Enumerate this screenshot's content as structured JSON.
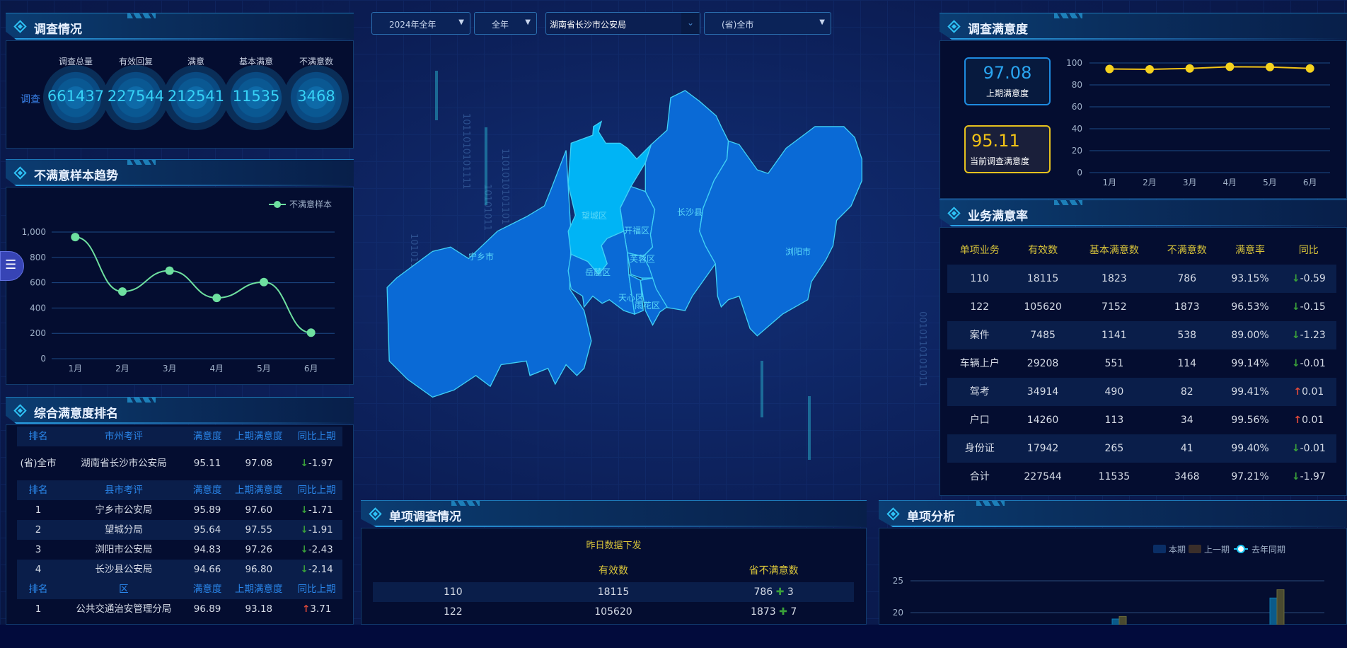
{
  "filters": {
    "year": "2024年全年",
    "period": "全年",
    "org": "湖南省长沙市公安局",
    "area": "(省)全市"
  },
  "survey": {
    "title": "调查情况",
    "row_label": "调查",
    "items": [
      {
        "label": "调查总量",
        "value": "661437"
      },
      {
        "label": "有效回复",
        "value": "227544"
      },
      {
        "label": "满意",
        "value": "212541"
      },
      {
        "label": "基本满意",
        "value": "11535"
      },
      {
        "label": "不满意数",
        "value": "3468"
      }
    ]
  },
  "trend": {
    "title": "不满意样本趋势"
  },
  "ranking": {
    "title": "综合满意度排名",
    "sections": [
      {
        "headers": [
          "排名",
          "市州考评",
          "满意度",
          "上期满意度",
          "同比上期"
        ],
        "rows": [
          [
            "(省)全市",
            "湖南省长沙市公安局",
            "95.11",
            "97.08",
            "-1.97",
            "down"
          ]
        ]
      },
      {
        "headers": [
          "排名",
          "县市考评",
          "满意度",
          "上期满意度",
          "同比上期"
        ],
        "rows": [
          [
            "1",
            "宁乡市公安局",
            "95.89",
            "97.60",
            "-1.71",
            "down"
          ],
          [
            "2",
            "望城分局",
            "95.64",
            "97.55",
            "-1.91",
            "down"
          ],
          [
            "3",
            "浏阳市公安局",
            "94.83",
            "97.26",
            "-2.43",
            "down"
          ],
          [
            "4",
            "长沙县公安局",
            "94.66",
            "96.80",
            "-2.14",
            "down"
          ]
        ]
      },
      {
        "headers": [
          "排名",
          "区",
          "满意度",
          "上期满意度",
          "同比上期"
        ],
        "rows": [
          [
            "1",
            "公共交通治安管理分局",
            "96.89",
            "93.18",
            "3.71",
            "up"
          ]
        ]
      }
    ]
  },
  "map": {
    "regions": [
      "宁乡市",
      "望城区",
      "开福区",
      "长沙县",
      "浏阳市",
      "岳麓区",
      "芙蓉区",
      "天心区",
      "雨花区"
    ],
    "highlighted": "望城区",
    "binary": [
      "1011010101111",
      "10101011",
      "1101010101101",
      "1010110101111",
      "0010110101011",
      "10101010111"
    ]
  },
  "satisfaction": {
    "title": "调查满意度",
    "prev": {
      "value": "97.08",
      "label": "上期满意度"
    },
    "current": {
      "value": "95.11",
      "label": "当前调查满意度"
    }
  },
  "business": {
    "title": "业务满意率",
    "headers": [
      "单项业务",
      "有效数",
      "基本满意数",
      "不满意数",
      "满意率",
      "同比"
    ],
    "rows": [
      [
        "110",
        "18115",
        "1823",
        "786",
        "93.15%",
        "-0.59",
        "down"
      ],
      [
        "122",
        "105620",
        "7152",
        "1873",
        "96.53%",
        "-0.15",
        "down"
      ],
      [
        "案件",
        "7485",
        "1141",
        "538",
        "89.00%",
        "-1.23",
        "down"
      ],
      [
        "车辆上户",
        "29208",
        "551",
        "114",
        "99.14%",
        "-0.01",
        "down"
      ],
      [
        "驾考",
        "34914",
        "490",
        "82",
        "99.41%",
        "0.01",
        "up"
      ],
      [
        "户口",
        "14260",
        "113",
        "34",
        "99.56%",
        "0.01",
        "up"
      ],
      [
        "身份证",
        "17942",
        "265",
        "41",
        "99.40%",
        "-0.01",
        "down"
      ],
      [
        "合计",
        "227544",
        "11535",
        "3468",
        "97.21%",
        "-1.97",
        "down"
      ]
    ]
  },
  "single": {
    "title": "单项调查情况",
    "group_header": "昨日数据下发",
    "headers": [
      "",
      "有效数",
      "省不满意数"
    ],
    "rows": [
      [
        "110",
        "18115",
        "786",
        "3"
      ],
      [
        "122",
        "105620",
        "1873",
        "7"
      ]
    ]
  },
  "analysis": {
    "title": "单项分析"
  },
  "colors": {
    "accent": "#2ec2f5",
    "green_line": "#6ee0a0",
    "yellow": "#f3c316",
    "down": "#3aa03a",
    "up": "#e04a3a",
    "map_fill": "#0a6ad6",
    "map_highlight": "#00b4f5"
  },
  "chart_data": [
    {
      "type": "line",
      "legend": [
        "不满意样本"
      ],
      "categories": [
        "1月",
        "2月",
        "3月",
        "4月",
        "5月",
        "6月"
      ],
      "series": [
        {
          "name": "不满意样本",
          "values": [
            960,
            530,
            695,
            480,
            605,
            205
          ]
        }
      ],
      "ylim": [
        0,
        1000
      ],
      "yticks": [
        "0",
        "200",
        "400",
        "600",
        "800",
        "1,000"
      ],
      "smooth": true,
      "grid": true,
      "legend_position": "top-right"
    },
    {
      "type": "line",
      "categories": [
        "1月",
        "2月",
        "3月",
        "4月",
        "5月",
        "6月"
      ],
      "series": [
        {
          "values": [
            94.5,
            94.2,
            95.0,
            96.5,
            96.3,
            95.0
          ]
        }
      ],
      "ylim": [
        0,
        100
      ],
      "yticks": [
        "0",
        "20",
        "40",
        "60",
        "80",
        "100"
      ],
      "grid": true
    },
    {
      "type": "bar",
      "legend": [
        "本期",
        "上一期",
        "去年同期"
      ],
      "yticks": [
        "20",
        "25"
      ],
      "series": [
        {
          "name": "本期",
          "values": [
            19,
            22.3
          ]
        },
        {
          "name": "上一期",
          "values": [
            19.4,
            23.6
          ]
        }
      ],
      "legend_position": "top-right"
    }
  ]
}
